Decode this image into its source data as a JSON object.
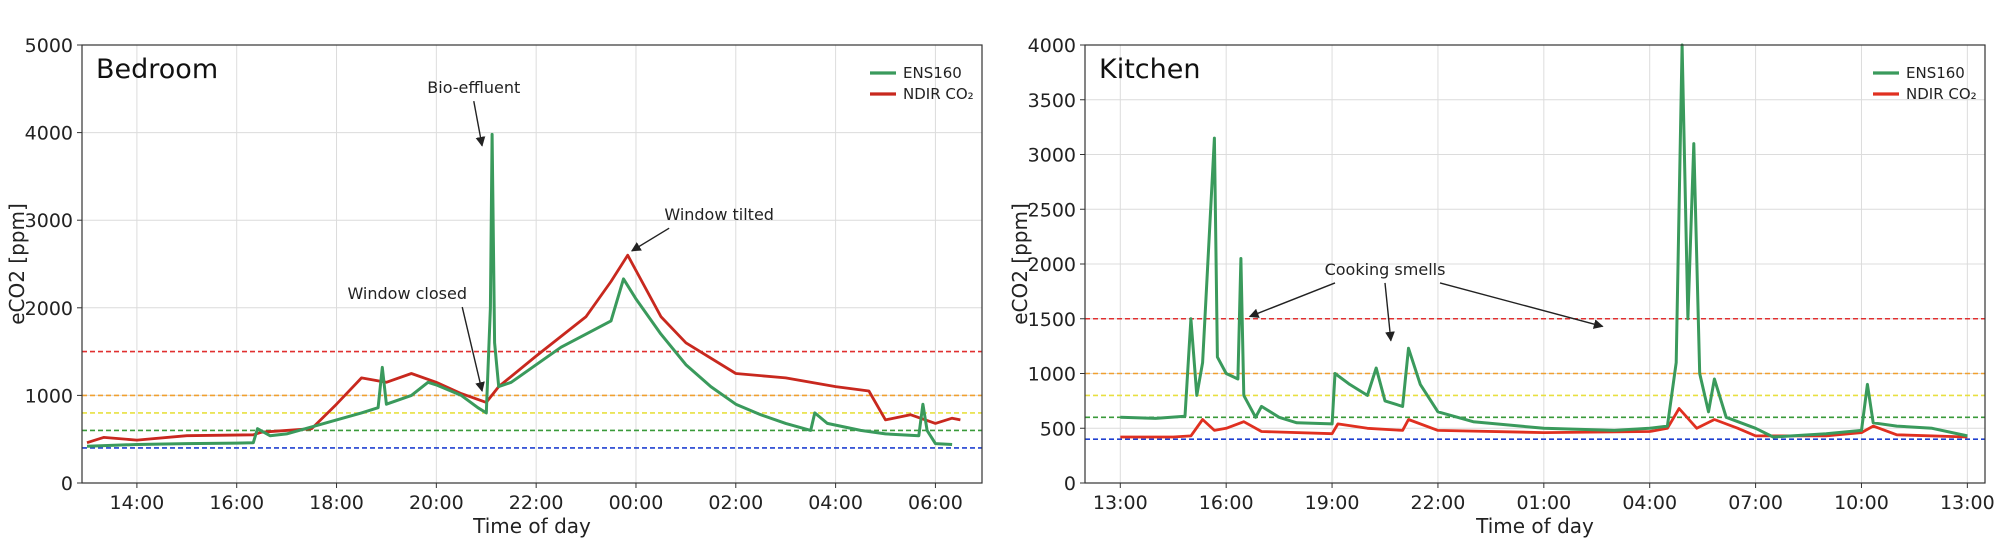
{
  "chart_data": [
    {
      "type": "line",
      "title": "Bedroom",
      "xlabel": "Time of day",
      "ylabel": "eCO2 [ppm]",
      "ylim": [
        0,
        5000
      ],
      "yticks": [
        0,
        1000,
        2000,
        3000,
        4000,
        5000
      ],
      "xlim": [
        "2024-01-01T12:54",
        "2024-01-02T06:56"
      ],
      "xticks": [
        {
          "t": "2024-01-01T14:00",
          "label": "14:00"
        },
        {
          "t": "2024-01-01T16:00",
          "label": "16:00"
        },
        {
          "t": "2024-01-01T18:00",
          "label": "18:00"
        },
        {
          "t": "2024-01-01T20:00",
          "label": "20:00"
        },
        {
          "t": "2024-01-01T22:00",
          "label": "22:00"
        },
        {
          "t": "2024-01-02T00:00",
          "label": "00:00"
        },
        {
          "t": "2024-01-02T02:00",
          "label": "02:00"
        },
        {
          "t": "2024-01-02T04:00",
          "label": "04:00"
        },
        {
          "t": "2024-01-02T06:00",
          "label": "06:00"
        }
      ],
      "grid": true,
      "legend_position": "top-right",
      "series": [
        {
          "name": "ENS160",
          "color": "#3a9a5c",
          "points": [
            [
              "2024-01-01T13:00",
              420
            ],
            [
              "2024-01-01T14:00",
              440
            ],
            [
              "2024-01-01T15:00",
              450
            ],
            [
              "2024-01-01T16:00",
              455
            ],
            [
              "2024-01-01T16:20",
              460
            ],
            [
              "2024-01-01T16:25",
              620
            ],
            [
              "2024-01-01T16:40",
              540
            ],
            [
              "2024-01-01T17:00",
              560
            ],
            [
              "2024-01-01T17:30",
              640
            ],
            [
              "2024-01-01T18:00",
              720
            ],
            [
              "2024-01-01T18:30",
              800
            ],
            [
              "2024-01-01T18:50",
              860
            ],
            [
              "2024-01-01T18:55",
              1320
            ],
            [
              "2024-01-01T19:00",
              900
            ],
            [
              "2024-01-01T19:30",
              1000
            ],
            [
              "2024-01-01T19:50",
              1150
            ],
            [
              "2024-01-01T20:00",
              1120
            ],
            [
              "2024-01-01T20:30",
              1000
            ],
            [
              "2024-01-01T20:50",
              860
            ],
            [
              "2024-01-01T21:00",
              800
            ],
            [
              "2024-01-01T21:05",
              2000
            ],
            [
              "2024-01-01T21:07",
              3980
            ],
            [
              "2024-01-01T21:10",
              1600
            ],
            [
              "2024-01-01T21:15",
              1100
            ],
            [
              "2024-01-01T21:30",
              1150
            ],
            [
              "2024-01-01T22:00",
              1350
            ],
            [
              "2024-01-01T22:30",
              1550
            ],
            [
              "2024-01-01T23:00",
              1700
            ],
            [
              "2024-01-01T23:30",
              1850
            ],
            [
              "2024-01-01T23:45",
              2330
            ],
            [
              "2024-01-02T00:00",
              2100
            ],
            [
              "2024-01-02T00:30",
              1700
            ],
            [
              "2024-01-02T01:00",
              1350
            ],
            [
              "2024-01-02T01:30",
              1100
            ],
            [
              "2024-01-02T02:00",
              900
            ],
            [
              "2024-01-02T02:30",
              780
            ],
            [
              "2024-01-02T03:00",
              680
            ],
            [
              "2024-01-02T03:30",
              600
            ],
            [
              "2024-01-02T03:35",
              800
            ],
            [
              "2024-01-02T03:50",
              680
            ],
            [
              "2024-01-02T04:30",
              600
            ],
            [
              "2024-01-02T05:00",
              560
            ],
            [
              "2024-01-02T05:40",
              540
            ],
            [
              "2024-01-02T05:45",
              900
            ],
            [
              "2024-01-02T05:50",
              600
            ],
            [
              "2024-01-02T06:00",
              450
            ],
            [
              "2024-01-02T06:20",
              440
            ]
          ]
        },
        {
          "name": "NDIR CO₂",
          "color": "#c8281e",
          "points": [
            [
              "2024-01-01T13:00",
              460
            ],
            [
              "2024-01-01T13:20",
              520
            ],
            [
              "2024-01-01T14:00",
              490
            ],
            [
              "2024-01-01T15:00",
              540
            ],
            [
              "2024-01-01T16:20",
              550
            ],
            [
              "2024-01-01T16:30",
              580
            ],
            [
              "2024-01-01T17:30",
              620
            ],
            [
              "2024-01-01T18:00",
              900
            ],
            [
              "2024-01-01T18:30",
              1200
            ],
            [
              "2024-01-01T19:00",
              1150
            ],
            [
              "2024-01-01T19:30",
              1250
            ],
            [
              "2024-01-01T20:00",
              1150
            ],
            [
              "2024-01-01T20:30",
              1020
            ],
            [
              "2024-01-01T21:00",
              920
            ],
            [
              "2024-01-01T21:15",
              1100
            ],
            [
              "2024-01-01T22:00",
              1450
            ],
            [
              "2024-01-01T23:00",
              1900
            ],
            [
              "2024-01-01T23:30",
              2300
            ],
            [
              "2024-01-01T23:50",
              2600
            ],
            [
              "2024-01-02T00:30",
              1900
            ],
            [
              "2024-01-02T01:00",
              1600
            ],
            [
              "2024-01-02T02:00",
              1250
            ],
            [
              "2024-01-02T03:00",
              1200
            ],
            [
              "2024-01-02T04:00",
              1100
            ],
            [
              "2024-01-02T04:40",
              1050
            ],
            [
              "2024-01-02T05:00",
              720
            ],
            [
              "2024-01-02T05:30",
              780
            ],
            [
              "2024-01-02T06:00",
              680
            ],
            [
              "2024-01-02T06:20",
              740
            ],
            [
              "2024-01-02T06:30",
              720
            ]
          ]
        }
      ],
      "hlines": [
        {
          "y": 1500,
          "color": "#e03030"
        },
        {
          "y": 1000,
          "color": "#f0a030"
        },
        {
          "y": 800,
          "color": "#e8e040"
        },
        {
          "y": 600,
          "color": "#3a9a3a"
        },
        {
          "y": 400,
          "color": "#2040d0"
        }
      ],
      "annotations": [
        {
          "text": "Bio-effluent",
          "text_at": [
            "2024-01-01T20:45",
            4450
          ],
          "point_at": [
            "2024-01-01T20:55",
            3850
          ]
        },
        {
          "text": "Window tilted",
          "text_at": [
            "2024-01-02T01:40",
            3000
          ],
          "point_at": [
            "2024-01-01T23:55",
            2650
          ]
        },
        {
          "text": "Window closed",
          "text_at": [
            "2024-01-01T19:25",
            2100
          ],
          "point_at": [
            "2024-01-01T20:55",
            1050
          ]
        }
      ]
    },
    {
      "type": "line",
      "title": "Kitchen",
      "xlabel": "Time of day",
      "ylabel": "eCO2 [ppm]",
      "ylim": [
        0,
        4000
      ],
      "yticks": [
        0,
        500,
        1000,
        1500,
        2000,
        2500,
        3000,
        3500,
        4000
      ],
      "xlim": [
        "2024-01-01T12:00",
        "2024-01-02T13:30"
      ],
      "xticks": [
        {
          "t": "2024-01-01T13:00",
          "label": "13:00"
        },
        {
          "t": "2024-01-01T16:00",
          "label": "16:00"
        },
        {
          "t": "2024-01-01T19:00",
          "label": "19:00"
        },
        {
          "t": "2024-01-01T22:00",
          "label": "22:00"
        },
        {
          "t": "2024-01-02T01:00",
          "label": "01:00"
        },
        {
          "t": "2024-01-02T04:00",
          "label": "04:00"
        },
        {
          "t": "2024-01-02T07:00",
          "label": "07:00"
        },
        {
          "t": "2024-01-02T10:00",
          "label": "10:00"
        },
        {
          "t": "2024-01-02T13:00",
          "label": "13:00"
        }
      ],
      "grid": true,
      "legend_position": "top-right",
      "series": [
        {
          "name": "ENS160",
          "color": "#3a9a5c",
          "points": [
            [
              "2024-01-01T13:00",
              600
            ],
            [
              "2024-01-01T14:00",
              590
            ],
            [
              "2024-01-01T14:50",
              610
            ],
            [
              "2024-01-01T15:00",
              1500
            ],
            [
              "2024-01-01T15:10",
              800
            ],
            [
              "2024-01-01T15:20",
              1100
            ],
            [
              "2024-01-01T15:40",
              3150
            ],
            [
              "2024-01-01T15:45",
              1150
            ],
            [
              "2024-01-01T16:00",
              1000
            ],
            [
              "2024-01-01T16:20",
              950
            ],
            [
              "2024-01-01T16:25",
              2050
            ],
            [
              "2024-01-01T16:30",
              800
            ],
            [
              "2024-01-01T16:50",
              600
            ],
            [
              "2024-01-01T17:00",
              700
            ],
            [
              "2024-01-01T17:30",
              600
            ],
            [
              "2024-01-01T18:00",
              550
            ],
            [
              "2024-01-01T19:00",
              540
            ],
            [
              "2024-01-01T19:05",
              1000
            ],
            [
              "2024-01-01T19:30",
              900
            ],
            [
              "2024-01-01T20:00",
              800
            ],
            [
              "2024-01-01T20:15",
              1050
            ],
            [
              "2024-01-01T20:30",
              750
            ],
            [
              "2024-01-01T21:00",
              700
            ],
            [
              "2024-01-01T21:10",
              1230
            ],
            [
              "2024-01-01T21:30",
              900
            ],
            [
              "2024-01-01T22:00",
              650
            ],
            [
              "2024-01-01T23:00",
              560
            ],
            [
              "2024-01-02T01:00",
              500
            ],
            [
              "2024-01-02T03:00",
              480
            ],
            [
              "2024-01-02T04:00",
              500
            ],
            [
              "2024-01-02T04:30",
              520
            ],
            [
              "2024-01-02T04:45",
              1100
            ],
            [
              "2024-01-02T04:55",
              4000
            ],
            [
              "2024-01-02T05:05",
              1500
            ],
            [
              "2024-01-02T05:15",
              3100
            ],
            [
              "2024-01-02T05:25",
              1000
            ],
            [
              "2024-01-02T05:40",
              650
            ],
            [
              "2024-01-02T05:50",
              950
            ],
            [
              "2024-01-02T06:10",
              600
            ],
            [
              "2024-01-02T07:00",
              500
            ],
            [
              "2024-01-02T07:30",
              420
            ],
            [
              "2024-01-02T09:00",
              450
            ],
            [
              "2024-01-02T10:00",
              480
            ],
            [
              "2024-01-02T10:10",
              900
            ],
            [
              "2024-01-02T10:20",
              550
            ],
            [
              "2024-01-02T11:00",
              520
            ],
            [
              "2024-01-02T12:00",
              500
            ],
            [
              "2024-01-02T13:00",
              430
            ]
          ]
        },
        {
          "name": "NDIR CO₂",
          "color": "#e03020",
          "points": [
            [
              "2024-01-01T13:00",
              420
            ],
            [
              "2024-01-01T14:30",
              420
            ],
            [
              "2024-01-01T15:00",
              430
            ],
            [
              "2024-01-01T15:20",
              580
            ],
            [
              "2024-01-01T15:40",
              480
            ],
            [
              "2024-01-01T16:00",
              500
            ],
            [
              "2024-01-01T16:30",
              560
            ],
            [
              "2024-01-01T17:00",
              470
            ],
            [
              "2024-01-01T19:00",
              450
            ],
            [
              "2024-01-01T19:10",
              540
            ],
            [
              "2024-01-01T20:00",
              500
            ],
            [
              "2024-01-01T21:00",
              480
            ],
            [
              "2024-01-01T21:10",
              580
            ],
            [
              "2024-01-01T22:00",
              480
            ],
            [
              "2024-01-02T01:00",
              460
            ],
            [
              "2024-01-02T04:00",
              470
            ],
            [
              "2024-01-02T04:30",
              500
            ],
            [
              "2024-01-02T04:50",
              680
            ],
            [
              "2024-01-02T05:20",
              500
            ],
            [
              "2024-01-02T05:50",
              580
            ],
            [
              "2024-01-02T06:30",
              500
            ],
            [
              "2024-01-02T07:00",
              430
            ],
            [
              "2024-01-02T09:00",
              430
            ],
            [
              "2024-01-02T10:00",
              460
            ],
            [
              "2024-01-02T10:20",
              520
            ],
            [
              "2024-01-02T11:00",
              440
            ],
            [
              "2024-01-02T13:00",
              420
            ]
          ]
        }
      ],
      "hlines": [
        {
          "y": 1500,
          "color": "#e03030"
        },
        {
          "y": 1000,
          "color": "#f0a030"
        },
        {
          "y": 800,
          "color": "#e8e040"
        },
        {
          "y": 600,
          "color": "#3a9a3a"
        },
        {
          "y": 400,
          "color": "#2040d0"
        }
      ],
      "annotations": [
        {
          "text": "Cooking smells",
          "text_at": [
            "2024-01-01T20:30",
            1900
          ],
          "point_at": [
            "2024-01-01T16:40",
            1520
          ]
        },
        {
          "text": "Cooking smells",
          "text_at": [
            "2024-01-01T20:30",
            1900
          ],
          "point_at": [
            "2024-01-01T20:40",
            1300
          ],
          "arrow_only": true
        },
        {
          "text": "Cooking smells",
          "text_at": [
            "2024-01-01T20:30",
            1900
          ],
          "point_at": [
            "2024-01-02T02:40",
            1430
          ],
          "arrow_only": true
        }
      ]
    }
  ]
}
